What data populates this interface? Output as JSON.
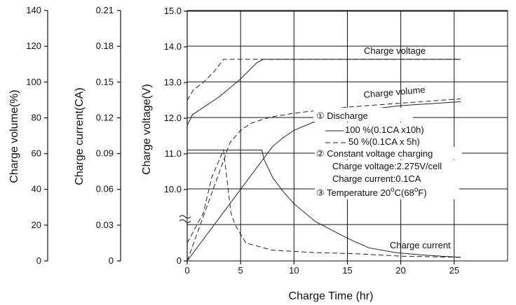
{
  "chart_data": {
    "type": "line",
    "xlabel": "Charge Time (hr)",
    "x_ticks": [
      0,
      5,
      10,
      15,
      20,
      25
    ],
    "xlim": [
      0,
      30
    ],
    "axes": {
      "volume": {
        "label": "Charge volume(%)",
        "ticks": [
          "140",
          "120",
          "100",
          "80",
          "60",
          "40",
          "20",
          "0"
        ],
        "values": [
          140,
          120,
          100,
          80,
          60,
          40,
          20,
          0
        ]
      },
      "current": {
        "label": "Charge current(CA)",
        "ticks": [
          "0.21",
          "0.18",
          "0.15",
          "0.12",
          "0.09",
          "0.06",
          "0.03",
          "0"
        ],
        "values": [
          0.21,
          0.18,
          0.15,
          0.12,
          0.09,
          0.06,
          0.03,
          0
        ]
      },
      "voltage": {
        "label": "Charge voltage(V)",
        "ticks": [
          "15.0",
          "14.0",
          "13.0",
          "12.0",
          "11.0",
          "10.0",
          "0"
        ],
        "values": [
          15,
          14,
          13,
          12,
          11,
          10
        ]
      }
    },
    "curve_labels": {
      "voltage": "Charge voltage",
      "volume": "Charge volume",
      "current": "Charge current"
    },
    "legend": {
      "item1_title": "① Discharge",
      "item1_solid": "100 %(0.1CA x10h)",
      "item1_dashed": "50 %(0.1CA x 5h)",
      "item2_title": "② Constant voltage charging",
      "item2_line1": "Charge voltage:2.275V/cell",
      "item2_line2": "Charge current:0.1CA",
      "item3_title": "③ Temperature 20",
      "item3_deg1": "o",
      "item3_mid": "C(68",
      "item3_deg2": "o",
      "item3_end": "F)"
    },
    "series": [
      {
        "name": "Charge voltage (100%)",
        "style": "solid",
        "axis": "voltage",
        "points": [
          [
            0,
            11.8
          ],
          [
            0.5,
            12.1
          ],
          [
            1.5,
            12.3
          ],
          [
            3,
            12.6
          ],
          [
            5,
            13.1
          ],
          [
            6.5,
            13.55
          ],
          [
            7.1,
            13.65
          ],
          [
            25.6,
            13.65
          ]
        ]
      },
      {
        "name": "Charge voltage (50%)",
        "style": "dashed",
        "axis": "voltage",
        "points": [
          [
            0,
            12.5
          ],
          [
            0.6,
            12.8
          ],
          [
            1.5,
            13.0
          ],
          [
            2.5,
            13.3
          ],
          [
            3.4,
            13.65
          ],
          [
            25.6,
            13.65
          ]
        ]
      },
      {
        "name": "Charge volume (100%)",
        "style": "solid",
        "axis": "volume",
        "points": [
          [
            0,
            0
          ],
          [
            7,
            56
          ],
          [
            8,
            64
          ],
          [
            9,
            69
          ],
          [
            10,
            73
          ],
          [
            12,
            78
          ],
          [
            15,
            83.4
          ],
          [
            20,
            86.8
          ],
          [
            25.6,
            89
          ]
        ]
      },
      {
        "name": "Charge volume (50%)",
        "style": "dashed",
        "axis": "volume",
        "points": [
          [
            0,
            0
          ],
          [
            3.4,
            56
          ],
          [
            4,
            66
          ],
          [
            5,
            73
          ],
          [
            6,
            77
          ],
          [
            7,
            79
          ],
          [
            8,
            80.6
          ],
          [
            10,
            82.6
          ],
          [
            15,
            86
          ],
          [
            20,
            88.2
          ],
          [
            25.6,
            90.6
          ]
        ]
      },
      {
        "name": "Charge current (100%)",
        "style": "solid",
        "axis": "current",
        "points": [
          [
            0,
            0.093
          ],
          [
            7,
            0.093
          ],
          [
            7.2,
            0.085
          ],
          [
            8,
            0.07
          ],
          [
            9,
            0.058
          ],
          [
            10,
            0.048
          ],
          [
            12,
            0.033
          ],
          [
            15,
            0.019
          ],
          [
            17,
            0.011
          ],
          [
            19.5,
            0.007
          ],
          [
            22,
            0.005
          ],
          [
            25.6,
            0.003
          ]
        ]
      },
      {
        "name": "Charge current (50%)",
        "style": "dashed",
        "axis": "current",
        "points": [
          [
            0,
            0.015
          ],
          [
            1.5,
            0.04
          ],
          [
            2.3,
            0.07
          ],
          [
            3.4,
            0.093
          ],
          [
            3.7,
            0.07
          ],
          [
            4.1,
            0.04
          ],
          [
            4.5,
            0.03
          ],
          [
            5.5,
            0.015
          ],
          [
            8,
            0.009
          ],
          [
            12,
            0.007
          ],
          [
            16,
            0.006
          ],
          [
            20,
            0.004
          ],
          [
            25.6,
            0.003
          ]
        ]
      }
    ],
    "guide_lines": [
      {
        "x1": 0,
        "x2": 7,
        "current": 0.093
      }
    ],
    "grid": true
  }
}
